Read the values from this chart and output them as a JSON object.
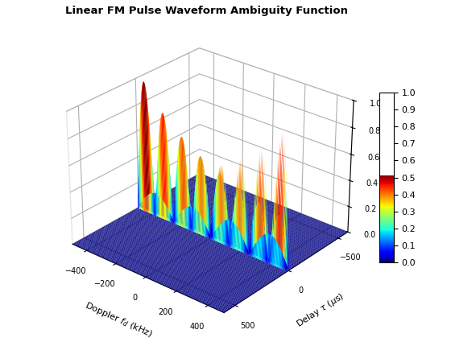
{
  "title": "Linear FM Pulse Waveform Ambiguity Function",
  "xlabel": "Doppler $f_d$ (kHz)",
  "ylabel": "Delay $\\tau$ ($\\mu$s)",
  "tau_range": [
    -600,
    600
  ],
  "fd_range": [
    -500,
    500
  ],
  "tau_points": 300,
  "fd_points": 300,
  "T_us": 10.0,
  "B_kHz": 5000.0,
  "colormap": "jet",
  "zlim": [
    0,
    1
  ],
  "elev": 28,
  "azim": -50,
  "x_ticks": [
    -400,
    -200,
    0,
    200,
    400
  ],
  "y_ticks": [
    -500,
    0,
    500
  ],
  "z_ticks": [
    0,
    0.2,
    0.4,
    0.6,
    0.8,
    1.0
  ],
  "cbar_ticks": [
    0,
    0.1,
    0.2,
    0.3,
    0.4,
    0.5,
    0.6,
    0.7,
    0.8,
    0.9,
    1.0
  ]
}
